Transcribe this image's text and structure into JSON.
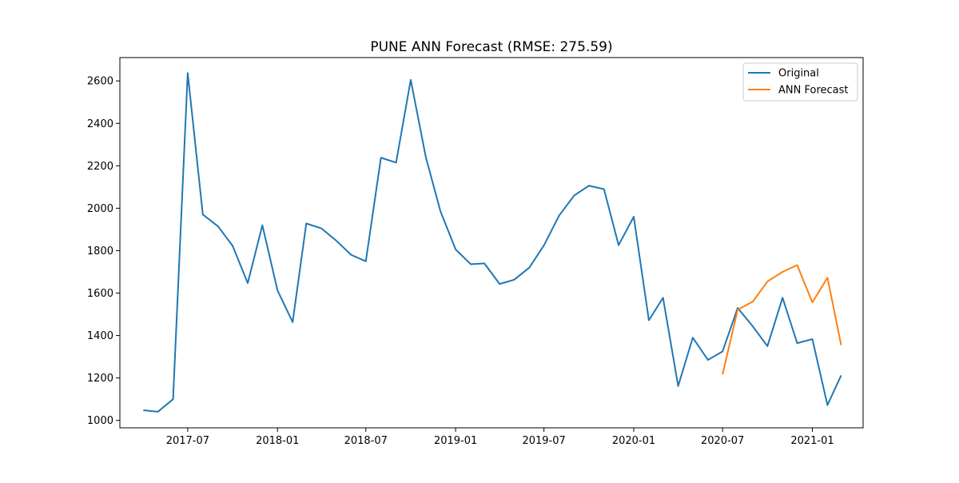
{
  "chart_data": {
    "type": "line",
    "title": "PUNE ANN Forecast (RMSE: 275.59)",
    "xlabel": "",
    "ylabel": "",
    "xlim": [
      "2017-02-12",
      "2021-04-15"
    ],
    "ylim": [
      965,
      2710
    ],
    "grid": false,
    "legend_position": "top-right",
    "x_ticks": [
      "2017-07",
      "2018-01",
      "2018-07",
      "2019-01",
      "2019-07",
      "2020-01",
      "2020-07",
      "2021-01"
    ],
    "y_ticks": [
      1000,
      1200,
      1400,
      1600,
      1800,
      2000,
      2200,
      2400,
      2600
    ],
    "series": [
      {
        "name": "Original",
        "color": "#1f77b4",
        "points": [
          [
            "2017-04-01",
            1048
          ],
          [
            "2017-05-01",
            1041
          ],
          [
            "2017-06-01",
            1100
          ],
          [
            "2017-07-01",
            2637
          ],
          [
            "2017-08-01",
            1970
          ],
          [
            "2017-09-01",
            1915
          ],
          [
            "2017-10-01",
            1823
          ],
          [
            "2017-11-01",
            1647
          ],
          [
            "2017-12-01",
            1920
          ],
          [
            "2018-01-01",
            1613
          ],
          [
            "2018-02-01",
            1463
          ],
          [
            "2018-03-01",
            1928
          ],
          [
            "2018-04-01",
            1905
          ],
          [
            "2018-05-01",
            1848
          ],
          [
            "2018-06-01",
            1780
          ],
          [
            "2018-07-01",
            1750
          ],
          [
            "2018-08-01",
            2238
          ],
          [
            "2018-09-01",
            2215
          ],
          [
            "2018-10-01",
            2605
          ],
          [
            "2018-11-01",
            2240
          ],
          [
            "2018-12-01",
            1985
          ],
          [
            "2019-01-01",
            1806
          ],
          [
            "2019-02-01",
            1736
          ],
          [
            "2019-03-01",
            1740
          ],
          [
            "2019-04-01",
            1643
          ],
          [
            "2019-05-01",
            1663
          ],
          [
            "2019-06-01",
            1720
          ],
          [
            "2019-07-01",
            1825
          ],
          [
            "2019-08-01",
            1965
          ],
          [
            "2019-09-01",
            2060
          ],
          [
            "2019-10-01",
            2106
          ],
          [
            "2019-11-01",
            2090
          ],
          [
            "2019-12-01",
            1826
          ],
          [
            "2020-01-01",
            1960
          ],
          [
            "2020-02-01",
            1472
          ],
          [
            "2020-03-01",
            1578
          ],
          [
            "2020-04-01",
            1162
          ],
          [
            "2020-05-01",
            1390
          ],
          [
            "2020-06-01",
            1285
          ],
          [
            "2020-07-01",
            1325
          ],
          [
            "2020-08-01",
            1530
          ],
          [
            "2020-09-01",
            1443
          ],
          [
            "2020-10-01",
            1350
          ],
          [
            "2020-11-01",
            1578
          ],
          [
            "2020-12-01",
            1364
          ],
          [
            "2021-01-01",
            1383
          ],
          [
            "2021-02-01",
            1072
          ],
          [
            "2021-03-01",
            1212
          ]
        ]
      },
      {
        "name": "ANN Forecast",
        "color": "#ff7f0e",
        "points": [
          [
            "2020-07-01",
            1217
          ],
          [
            "2020-08-01",
            1522
          ],
          [
            "2020-09-01",
            1560
          ],
          [
            "2020-10-01",
            1655
          ],
          [
            "2020-11-01",
            1700
          ],
          [
            "2020-12-01",
            1732
          ],
          [
            "2021-01-01",
            1556
          ],
          [
            "2021-02-01",
            1673
          ],
          [
            "2021-03-01",
            1355
          ]
        ]
      }
    ]
  }
}
